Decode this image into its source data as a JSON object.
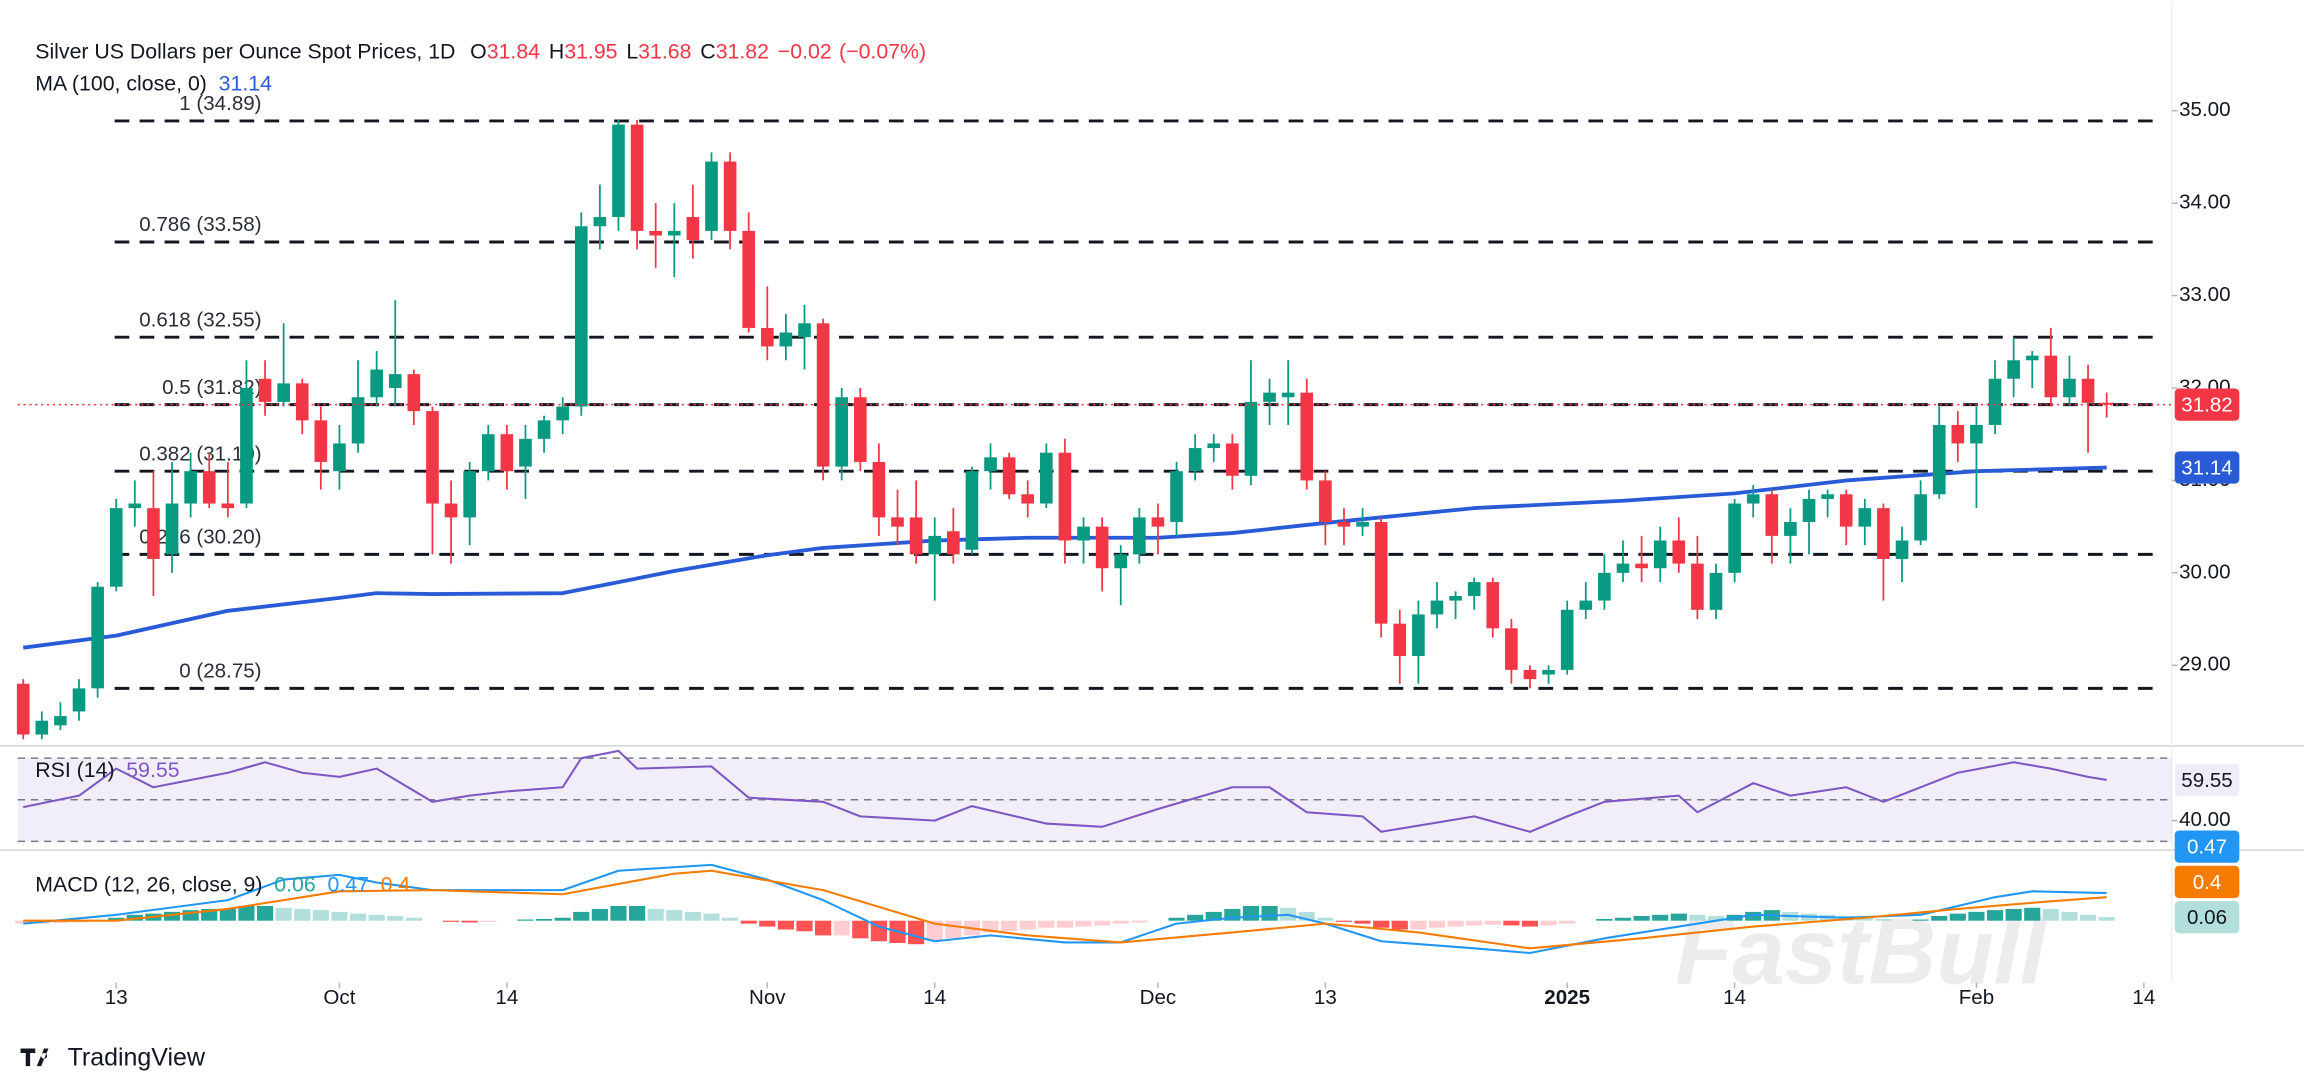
{
  "chart_data": [
    {
      "type": "candlestick",
      "title": "Silver US Dollars per Ounce Spot Prices, 1D",
      "ohlc": [
        {
          "key": "O",
          "value": 31.84
        },
        {
          "key": "H",
          "value": 31.95
        },
        {
          "key": "L",
          "value": 31.68
        },
        {
          "key": "C",
          "value": 31.82
        }
      ],
      "change": {
        "value": -0.02,
        "label": "−0.02"
      },
      "change_pct": {
        "value": -0.07,
        "label": "(−0.07%)"
      },
      "up_color": "#089981",
      "down_color": "#f23645",
      "candles": [
        [
          28.8,
          28.85,
          28.2,
          28.25
        ],
        [
          28.25,
          28.5,
          28.2,
          28.4
        ],
        [
          28.35,
          28.6,
          28.3,
          28.45
        ],
        [
          28.5,
          28.85,
          28.4,
          28.75
        ],
        [
          28.75,
          29.9,
          28.65,
          29.85
        ],
        [
          29.85,
          30.8,
          29.8,
          30.7
        ],
        [
          30.7,
          31.0,
          30.5,
          30.75
        ],
        [
          30.7,
          31.1,
          29.75,
          30.15
        ],
        [
          30.2,
          31.2,
          30.0,
          30.75
        ],
        [
          30.75,
          31.3,
          30.6,
          31.1
        ],
        [
          31.1,
          31.3,
          30.7,
          30.75
        ],
        [
          30.75,
          31.2,
          30.6,
          30.7
        ],
        [
          30.75,
          32.3,
          30.7,
          32.0
        ],
        [
          32.1,
          32.3,
          31.7,
          31.85
        ],
        [
          31.85,
          32.7,
          31.8,
          32.05
        ],
        [
          32.05,
          32.1,
          31.5,
          31.65
        ],
        [
          31.65,
          31.8,
          30.9,
          31.2
        ],
        [
          31.1,
          31.6,
          30.9,
          31.4
        ],
        [
          31.4,
          32.3,
          31.3,
          31.9
        ],
        [
          31.9,
          32.4,
          31.8,
          32.2
        ],
        [
          32.0,
          32.95,
          31.8,
          32.15
        ],
        [
          32.15,
          32.2,
          31.6,
          31.75
        ],
        [
          31.75,
          31.8,
          30.2,
          30.75
        ],
        [
          30.75,
          31.0,
          30.1,
          30.6
        ],
        [
          30.6,
          31.2,
          30.3,
          31.1
        ],
        [
          31.1,
          31.6,
          31.0,
          31.5
        ],
        [
          31.5,
          31.6,
          30.9,
          31.1
        ],
        [
          31.15,
          31.6,
          30.8,
          31.45
        ],
        [
          31.45,
          31.7,
          31.3,
          31.65
        ],
        [
          31.65,
          31.9,
          31.5,
          31.8
        ],
        [
          31.8,
          33.9,
          31.7,
          33.75
        ],
        [
          33.75,
          34.2,
          33.5,
          33.85
        ],
        [
          33.85,
          34.9,
          33.7,
          34.85
        ],
        [
          34.85,
          34.9,
          33.5,
          33.7
        ],
        [
          33.7,
          34.0,
          33.3,
          33.65
        ],
        [
          33.65,
          34.0,
          33.2,
          33.7
        ],
        [
          33.85,
          34.2,
          33.4,
          33.6
        ],
        [
          33.7,
          34.55,
          33.6,
          34.45
        ],
        [
          34.45,
          34.55,
          33.5,
          33.7
        ],
        [
          33.7,
          33.9,
          32.6,
          32.65
        ],
        [
          32.65,
          33.1,
          32.3,
          32.45
        ],
        [
          32.45,
          32.8,
          32.3,
          32.6
        ],
        [
          32.55,
          32.9,
          32.2,
          32.7
        ],
        [
          32.7,
          32.75,
          31.0,
          31.15
        ],
        [
          31.15,
          32.0,
          31.0,
          31.9
        ],
        [
          31.9,
          32.0,
          31.1,
          31.2
        ],
        [
          31.2,
          31.4,
          30.4,
          30.6
        ],
        [
          30.6,
          30.9,
          30.3,
          30.5
        ],
        [
          30.6,
          31.0,
          30.1,
          30.2
        ],
        [
          30.2,
          30.6,
          29.7,
          30.4
        ],
        [
          30.45,
          30.7,
          30.1,
          30.2
        ],
        [
          30.25,
          31.15,
          30.2,
          31.1
        ],
        [
          31.1,
          31.4,
          30.9,
          31.25
        ],
        [
          31.25,
          31.3,
          30.8,
          30.85
        ],
        [
          30.85,
          31.0,
          30.6,
          30.75
        ],
        [
          30.75,
          31.4,
          30.7,
          31.3
        ],
        [
          31.3,
          31.45,
          30.1,
          30.35
        ],
        [
          30.35,
          30.6,
          30.1,
          30.5
        ],
        [
          30.5,
          30.6,
          29.8,
          30.05
        ],
        [
          30.05,
          30.3,
          29.65,
          30.2
        ],
        [
          30.2,
          30.7,
          30.1,
          30.6
        ],
        [
          30.6,
          30.75,
          30.2,
          30.5
        ],
        [
          30.55,
          31.2,
          30.4,
          31.1
        ],
        [
          31.1,
          31.5,
          31.0,
          31.35
        ],
        [
          31.35,
          31.5,
          31.2,
          31.4
        ],
        [
          31.4,
          31.5,
          30.9,
          31.05
        ],
        [
          31.05,
          32.3,
          30.95,
          31.85
        ],
        [
          31.85,
          32.1,
          31.6,
          31.95
        ],
        [
          31.9,
          32.3,
          31.6,
          31.95
        ],
        [
          31.95,
          32.1,
          30.9,
          31.0
        ],
        [
          31.0,
          31.1,
          30.3,
          30.55
        ],
        [
          30.55,
          30.7,
          30.3,
          30.5
        ],
        [
          30.5,
          30.7,
          30.4,
          30.55
        ],
        [
          30.55,
          30.6,
          29.3,
          29.45
        ],
        [
          29.45,
          29.6,
          28.8,
          29.1
        ],
        [
          29.1,
          29.7,
          28.8,
          29.55
        ],
        [
          29.55,
          29.9,
          29.4,
          29.7
        ],
        [
          29.7,
          29.8,
          29.5,
          29.75
        ],
        [
          29.75,
          29.95,
          29.6,
          29.9
        ],
        [
          29.9,
          29.95,
          29.3,
          29.4
        ],
        [
          29.4,
          29.5,
          28.8,
          28.95
        ],
        [
          28.95,
          29.0,
          28.75,
          28.85
        ],
        [
          28.9,
          29.0,
          28.8,
          28.95
        ],
        [
          28.95,
          29.7,
          28.9,
          29.6
        ],
        [
          29.6,
          29.9,
          29.5,
          29.7
        ],
        [
          29.7,
          30.2,
          29.6,
          30.0
        ],
        [
          30.0,
          30.35,
          29.9,
          30.1
        ],
        [
          30.1,
          30.4,
          29.9,
          30.05
        ],
        [
          30.05,
          30.5,
          29.9,
          30.35
        ],
        [
          30.35,
          30.6,
          30.0,
          30.1
        ],
        [
          30.1,
          30.4,
          29.5,
          29.6
        ],
        [
          29.6,
          30.1,
          29.5,
          30.0
        ],
        [
          30.0,
          30.8,
          29.9,
          30.75
        ],
        [
          30.75,
          30.95,
          30.6,
          30.85
        ],
        [
          30.85,
          30.9,
          30.1,
          30.4
        ],
        [
          30.4,
          30.7,
          30.1,
          30.55
        ],
        [
          30.55,
          30.9,
          30.2,
          30.8
        ],
        [
          30.8,
          30.9,
          30.6,
          30.85
        ],
        [
          30.85,
          30.9,
          30.3,
          30.5
        ],
        [
          30.5,
          30.8,
          30.3,
          30.7
        ],
        [
          30.7,
          30.75,
          29.7,
          30.15
        ],
        [
          30.15,
          30.5,
          29.9,
          30.35
        ],
        [
          30.35,
          31.0,
          30.3,
          30.85
        ],
        [
          30.85,
          31.8,
          30.8,
          31.6
        ],
        [
          31.6,
          31.75,
          31.2,
          31.4
        ],
        [
          31.4,
          31.8,
          30.7,
          31.6
        ],
        [
          31.6,
          32.3,
          31.5,
          32.1
        ],
        [
          32.1,
          32.55,
          31.9,
          32.3
        ],
        [
          32.3,
          32.4,
          32.0,
          32.35
        ],
        [
          32.35,
          32.65,
          31.8,
          31.9
        ],
        [
          31.9,
          32.35,
          31.8,
          32.1
        ],
        [
          32.1,
          32.25,
          31.3,
          31.84
        ],
        [
          31.84,
          31.95,
          31.68,
          31.82
        ]
      ],
      "ma": {
        "name": "MA (100, close, 0)",
        "color": "#2a5bd7",
        "x": [
          0,
          5,
          11,
          17,
          19,
          22,
          29,
          32,
          35,
          40,
          43,
          49,
          54,
          61,
          65,
          70,
          78,
          86,
          92,
          98,
          105,
          112
        ],
        "values": [
          29.19,
          29.32,
          29.59,
          29.73,
          29.78,
          29.77,
          29.78,
          29.9,
          30.02,
          30.19,
          30.27,
          30.35,
          30.38,
          30.38,
          30.43,
          30.54,
          30.7,
          30.78,
          30.86,
          31.0,
          31.1,
          31.14
        ]
      },
      "fib_levels": [
        {
          "label": "1 (34.89)",
          "value": 34.89
        },
        {
          "label": "0.786 (33.58)",
          "value": 33.58
        },
        {
          "label": "0.618 (32.55)",
          "value": 32.55
        },
        {
          "label": "0.5 (31.82)",
          "value": 31.82
        },
        {
          "label": "0.382 (31.10)",
          "value": 31.1
        },
        {
          "label": "0.236 (30.20)",
          "value": 30.2
        },
        {
          "label": "0 (28.75)",
          "value": 28.75
        }
      ],
      "xlim": [
        -0.3,
        115.5
      ],
      "xticks": [
        {
          "value": 5,
          "label": "13"
        },
        {
          "value": 17,
          "label": "Oct"
        },
        {
          "value": 26,
          "label": "14"
        },
        {
          "value": 40,
          "label": "Nov"
        },
        {
          "value": 49,
          "label": "14"
        },
        {
          "value": 61,
          "label": "Dec"
        },
        {
          "value": 70,
          "label": "13"
        },
        {
          "value": 83,
          "label": "2025",
          "bold": true
        },
        {
          "value": 92,
          "label": "14"
        },
        {
          "value": 105,
          "label": "Feb"
        },
        {
          "value": 114,
          "label": "14"
        }
      ],
      "ylim": [
        28.16,
        36.03
      ],
      "yticks": [
        {
          "value": 29,
          "label": "29.00"
        },
        {
          "value": 30,
          "label": "30.00"
        },
        {
          "value": 31,
          "label": "31.00"
        },
        {
          "value": 32,
          "label": "32.00"
        },
        {
          "value": 33,
          "label": "33.00"
        },
        {
          "value": 34,
          "label": "34.00"
        },
        {
          "value": 35,
          "label": "35.00"
        }
      ]
    },
    {
      "type": "rsi",
      "name": "RSI (14)",
      "color": "#7e57c2",
      "x": [
        0,
        3,
        5,
        7,
        11,
        13,
        15,
        17,
        19,
        22,
        24,
        26,
        29,
        30,
        32,
        33,
        37,
        39,
        43,
        45,
        49,
        51,
        55,
        58,
        61,
        65,
        67,
        69,
        72,
        73,
        78,
        81,
        83,
        85,
        89,
        90,
        93,
        95,
        98,
        100,
        104,
        107,
        109,
        111,
        112
      ],
      "values": [
        46.5,
        52,
        65,
        56,
        63,
        68,
        63,
        61,
        65,
        49,
        52,
        54,
        56,
        70,
        73.5,
        65,
        66,
        51,
        49,
        42,
        40,
        47,
        38.6,
        37,
        45.6,
        56,
        56,
        44,
        42,
        34.6,
        42,
        34.6,
        42,
        49,
        52,
        44,
        58,
        52,
        56,
        49,
        63,
        68,
        65,
        61,
        59.55
      ],
      "ylim": [
        25.8,
        73.8
      ],
      "yticks": [
        {
          "value": 40,
          "label": "40.00"
        }
      ],
      "levels": [
        70,
        50,
        30
      ]
    },
    {
      "type": "macd",
      "name": "MACD (12, 26, close, 9)",
      "macd": {
        "color": "#2196f3",
        "x": [
          0,
          5,
          11,
          14,
          17,
          19,
          22,
          29,
          32,
          37,
          40,
          43,
          46,
          49,
          52,
          56,
          59,
          62,
          65,
          68,
          70,
          73,
          78,
          81,
          85,
          89,
          93,
          98,
          102,
          106,
          108,
          112
        ],
        "values": [
          -0.05,
          0.1,
          0.35,
          0.7,
          0.78,
          0.65,
          0.52,
          0.52,
          0.85,
          0.95,
          0.7,
          0.35,
          -0.1,
          -0.35,
          -0.25,
          -0.37,
          -0.37,
          -0.05,
          0.05,
          0.1,
          -0.05,
          -0.35,
          -0.47,
          -0.55,
          -0.3,
          -0.1,
          0.1,
          0.05,
          0.1,
          0.4,
          0.5,
          0.47
        ]
      },
      "signal": {
        "color": "#f57c00",
        "x": [
          0,
          5,
          11,
          17,
          22,
          29,
          35,
          37,
          43,
          49,
          54,
          59,
          65,
          70,
          75,
          81,
          87,
          93,
          99,
          104,
          109,
          112
        ],
        "values": [
          0,
          0,
          0.2,
          0.5,
          0.52,
          0.45,
          0.8,
          0.85,
          0.52,
          -0.05,
          -0.25,
          -0.37,
          -0.2,
          -0.05,
          -0.2,
          -0.47,
          -0.3,
          -0.1,
          0.05,
          0.2,
          0.33,
          0.4
        ]
      },
      "histogram": {
        "colors": [
          "#26a69a",
          "#b2dfdb",
          "#ff5252",
          "#ffcdd2"
        ],
        "values": [
          -0.05,
          -0.05,
          -0.04,
          -0.03,
          0.0,
          0.05,
          0.1,
          0.12,
          0.15,
          0.18,
          0.2,
          0.2,
          0.25,
          0.25,
          0.22,
          0.2,
          0.18,
          0.15,
          0.12,
          0.1,
          0.08,
          0.05,
          0.0,
          -0.02,
          -0.03,
          -0.02,
          0.0,
          0.02,
          0.03,
          0.05,
          0.15,
          0.2,
          0.25,
          0.25,
          0.2,
          0.18,
          0.15,
          0.12,
          0.05,
          -0.05,
          -0.1,
          -0.15,
          -0.18,
          -0.25,
          -0.25,
          -0.3,
          -0.35,
          -0.38,
          -0.4,
          -0.35,
          -0.3,
          -0.25,
          -0.2,
          -0.18,
          -0.15,
          -0.12,
          -0.12,
          -0.1,
          -0.08,
          -0.05,
          -0.03,
          0.0,
          0.05,
          0.1,
          0.15,
          0.2,
          0.25,
          0.25,
          0.22,
          0.15,
          0.05,
          -0.02,
          -0.05,
          -0.12,
          -0.15,
          -0.15,
          -0.12,
          -0.1,
          -0.08,
          -0.07,
          -0.08,
          -0.1,
          -0.08,
          -0.05,
          0.0,
          0.03,
          0.05,
          0.08,
          0.1,
          0.12,
          0.1,
          0.08,
          0.1,
          0.15,
          0.18,
          0.15,
          0.12,
          0.1,
          0.08,
          0.05,
          0.03,
          0.0,
          0.02,
          0.08,
          0.12,
          0.15,
          0.18,
          0.2,
          0.22,
          0.2,
          0.15,
          0.1,
          0.06
        ]
      },
      "ylim": [
        -1.05,
        1.15
      ]
    }
  ],
  "footer": {
    "brand": "TradingView",
    "watermark": "FastBull"
  }
}
